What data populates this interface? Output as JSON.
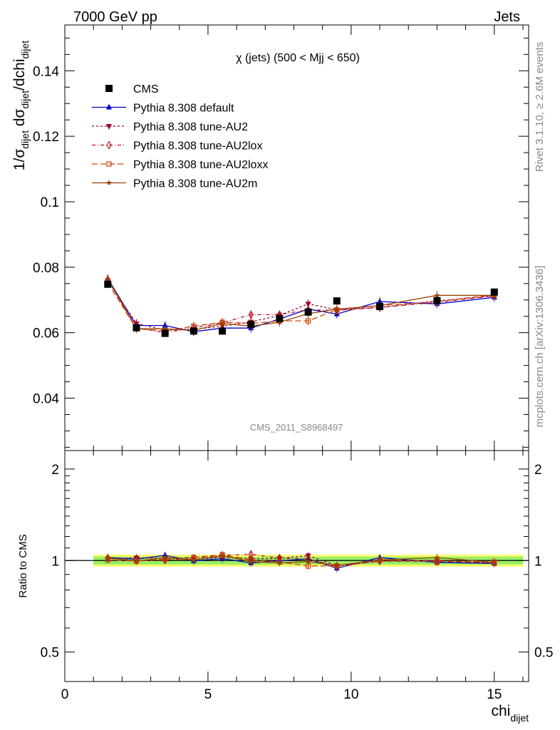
{
  "header": {
    "left": "7000 GeV pp",
    "right": "Jets"
  },
  "side": {
    "rivet": "Rivet 3.1.10, ≥ 2.6M events",
    "mcplots": "mcplots.cern.ch [arXiv:1306.3436]"
  },
  "chart_data": [
    {
      "type": "line",
      "title": "χ (jets) (500 < Mjj <  650)",
      "analysis_label": "CMS_2011_S8968497",
      "ylabel": "1/σdijet dσdijet/dchidijet",
      "ylim": [
        0.024,
        0.154
      ],
      "xlim": [
        0,
        16.2
      ],
      "yticks": [
        "0.04",
        "0.06",
        "0.08",
        "0.1",
        "0.12",
        "0.14"
      ],
      "ytick_values": [
        0.04,
        0.06,
        0.08,
        0.1,
        0.12,
        0.14
      ],
      "x": [
        1.5,
        2.5,
        3.5,
        4.5,
        5.5,
        6.5,
        7.5,
        8.5,
        9.5,
        11,
        13,
        15
      ],
      "data": {
        "name": "CMS",
        "values": [
          0.0748,
          0.0615,
          0.0598,
          0.0605,
          0.0605,
          0.0625,
          0.0643,
          0.0663,
          0.0697,
          0.068,
          0.0698,
          0.0724
        ],
        "color": "#000000"
      },
      "series": [
        {
          "name": "Pythia 8.308 default",
          "color": "#0000cc",
          "dash": "",
          "marker": "triangle-up",
          "values": [
            0.0765,
            0.0622,
            0.0622,
            0.0603,
            0.0614,
            0.0614,
            0.0642,
            0.0672,
            0.0657,
            0.0695,
            0.0688,
            0.0708
          ]
        },
        {
          "name": "Pythia 8.308 tune-AU2",
          "color": "#990033",
          "dash": "3,3",
          "marker": "triangle-down",
          "values": [
            0.0758,
            0.0628,
            0.0608,
            0.061,
            0.062,
            0.0633,
            0.0653,
            0.0688,
            0.067,
            0.0677,
            0.0697,
            0.0713
          ]
        },
        {
          "name": "Pythia 8.308 tune-AU2lox",
          "color": "#bb1122",
          "dash": "5,3,1,3",
          "marker": "diamond-open",
          "values": [
            0.0762,
            0.0615,
            0.06,
            0.0615,
            0.063,
            0.0655,
            0.0655,
            0.067,
            0.0668,
            0.0677,
            0.0693,
            0.0712
          ]
        },
        {
          "name": "Pythia 8.308 tune-AU2loxx",
          "color": "#cc4411",
          "dash": "8,4",
          "marker": "square-open",
          "values": [
            0.0752,
            0.0612,
            0.0605,
            0.062,
            0.0632,
            0.0628,
            0.0636,
            0.0636,
            0.067,
            0.0683,
            0.0695,
            0.0716
          ]
        },
        {
          "name": "Pythia 8.308 tune-AU2m",
          "color": "#994400",
          "dash": "",
          "marker": "star",
          "values": [
            0.0763,
            0.0612,
            0.0612,
            0.0607,
            0.0628,
            0.062,
            0.0632,
            0.0658,
            0.0672,
            0.0683,
            0.0714,
            0.0714
          ]
        }
      ]
    },
    {
      "type": "line",
      "ylabel": "Ratio to CMS",
      "xlabel": "chidijet",
      "ylim": [
        0.4,
        2.3
      ],
      "log_scale_y": true,
      "xlim": [
        0,
        16.2
      ],
      "yticks": [
        "0.5",
        "1",
        "2"
      ],
      "ytick_values": [
        0.5,
        1,
        2
      ],
      "xticks": [
        "0",
        "5",
        "10",
        "15"
      ],
      "xtick_values": [
        0,
        5,
        10,
        15
      ],
      "band": {
        "inner": 0.03,
        "outer": 0.045
      },
      "x": [
        1.5,
        2.5,
        3.5,
        4.5,
        5.5,
        6.5,
        7.5,
        8.5,
        9.5,
        11,
        13,
        15
      ],
      "series": [
        {
          "name": "Pythia 8.308 default",
          "values": [
            1.023,
            1.011,
            1.04,
            0.997,
            1.015,
            0.982,
            0.998,
            1.013,
            0.943,
            1.022,
            0.986,
            0.978
          ]
        },
        {
          "name": "Pythia 8.308 tune-AU2",
          "values": [
            1.013,
            1.021,
            1.017,
            1.008,
            1.025,
            1.013,
            1.016,
            1.038,
            0.961,
            0.996,
            0.999,
            0.985
          ]
        },
        {
          "name": "Pythia 8.308 tune-AU2lox",
          "values": [
            1.019,
            1.0,
            1.003,
            1.017,
            1.041,
            1.048,
            1.019,
            1.011,
            0.958,
            0.996,
            0.993,
            0.983
          ]
        },
        {
          "name": "Pythia 8.308 tune-AU2loxx",
          "values": [
            1.005,
            0.995,
            1.012,
            1.025,
            1.045,
            1.005,
            0.989,
            0.959,
            0.961,
            1.004,
            0.996,
            0.989
          ]
        },
        {
          "name": "Pythia 8.308 tune-AU2m",
          "values": [
            1.02,
            0.995,
            1.023,
            1.003,
            1.038,
            0.992,
            0.983,
            0.992,
            0.964,
            1.004,
            1.023,
            0.986
          ]
        }
      ]
    }
  ]
}
